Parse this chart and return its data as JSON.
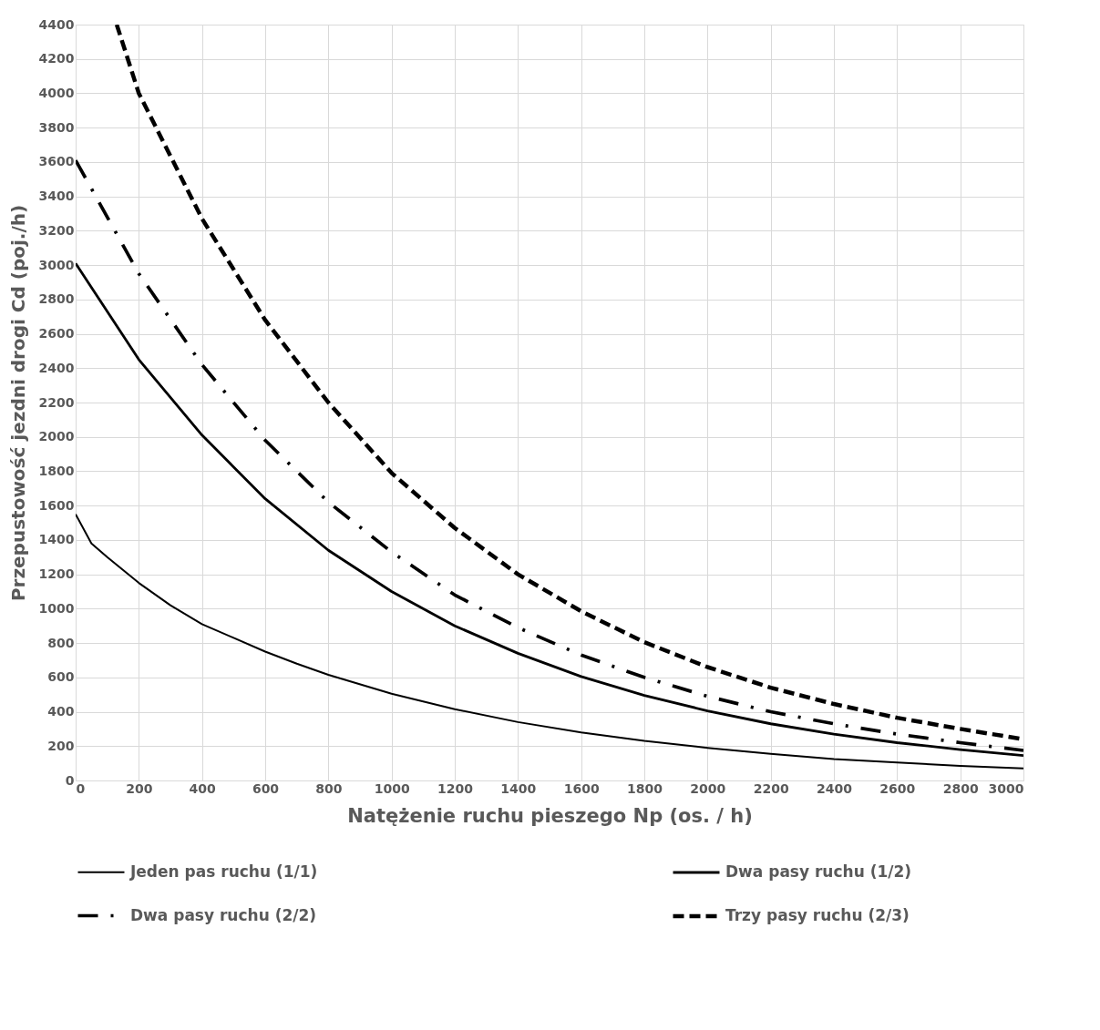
{
  "chart_data": {
    "type": "line",
    "xlabel": "Natężenie ruchu pieszego Np (os. / h)",
    "ylabel": "Przepustowość jezdni drogi Cd  (poj./h)",
    "xlim": [
      0,
      3000
    ],
    "xticks": [
      0,
      200,
      400,
      600,
      800,
      1000,
      1200,
      1400,
      1600,
      1800,
      2000,
      2200,
      2400,
      2600,
      2800,
      3000
    ],
    "ylim": [
      0,
      4400
    ],
    "yticks": [
      0,
      200,
      400,
      600,
      800,
      1000,
      1200,
      1400,
      1600,
      1800,
      2000,
      2200,
      2400,
      2600,
      2800,
      3000,
      3200,
      3400,
      3600,
      3800,
      4000,
      4200,
      4400
    ],
    "grid": true,
    "legend": "bottom",
    "marker": "none",
    "series": [
      {
        "name": "Jeden pas ruchu (1/1)",
        "color": "#000000",
        "line_style": "solid",
        "x": [
          0,
          50,
          100,
          200,
          300,
          400,
          500,
          600,
          700,
          800,
          1000,
          1200,
          1400,
          1600,
          1800,
          2000,
          2200,
          2400,
          2600,
          2800,
          3000
        ],
        "values": [
          1550,
          1380,
          1300,
          1150,
          1020,
          910,
          830,
          750,
          680,
          615,
          505,
          415,
          340,
          280,
          230,
          190,
          155,
          125,
          105,
          85,
          70
        ]
      },
      {
        "name": "Dwa pasy ruchu (1/2)",
        "color": "#000000",
        "line_style": "solid",
        "x": [
          0,
          200,
          400,
          600,
          800,
          1000,
          1200,
          1400,
          1600,
          1800,
          2000,
          2200,
          2400,
          2600,
          2800,
          3000
        ],
        "values": [
          3010,
          2450,
          2010,
          1640,
          1340,
          1100,
          900,
          740,
          605,
          495,
          405,
          330,
          270,
          220,
          180,
          145
        ]
      },
      {
        "name": "Dwa pasy ruchu (2/2)",
        "color": "#000000",
        "line_style": "dashdot",
        "x": [
          0,
          200,
          400,
          600,
          800,
          1000,
          1200,
          1400,
          1600,
          1800,
          2000,
          2200,
          2400,
          2600,
          2800,
          3000
        ],
        "values": [
          3610,
          2950,
          2420,
          1980,
          1620,
          1330,
          1080,
          890,
          730,
          600,
          490,
          400,
          330,
          270,
          220,
          175
        ]
      },
      {
        "name": "Trzy pasy ruchu (2/3)",
        "color": "#000000",
        "line_style": "dashed",
        "x": [
          130,
          200,
          400,
          600,
          800,
          1000,
          1200,
          1400,
          1600,
          1800,
          2000,
          2200,
          2400,
          2600,
          2800,
          3000
        ],
        "values": [
          4400,
          4000,
          3270,
          2680,
          2200,
          1790,
          1470,
          1200,
          985,
          805,
          660,
          540,
          445,
          365,
          300,
          240
        ]
      }
    ]
  }
}
